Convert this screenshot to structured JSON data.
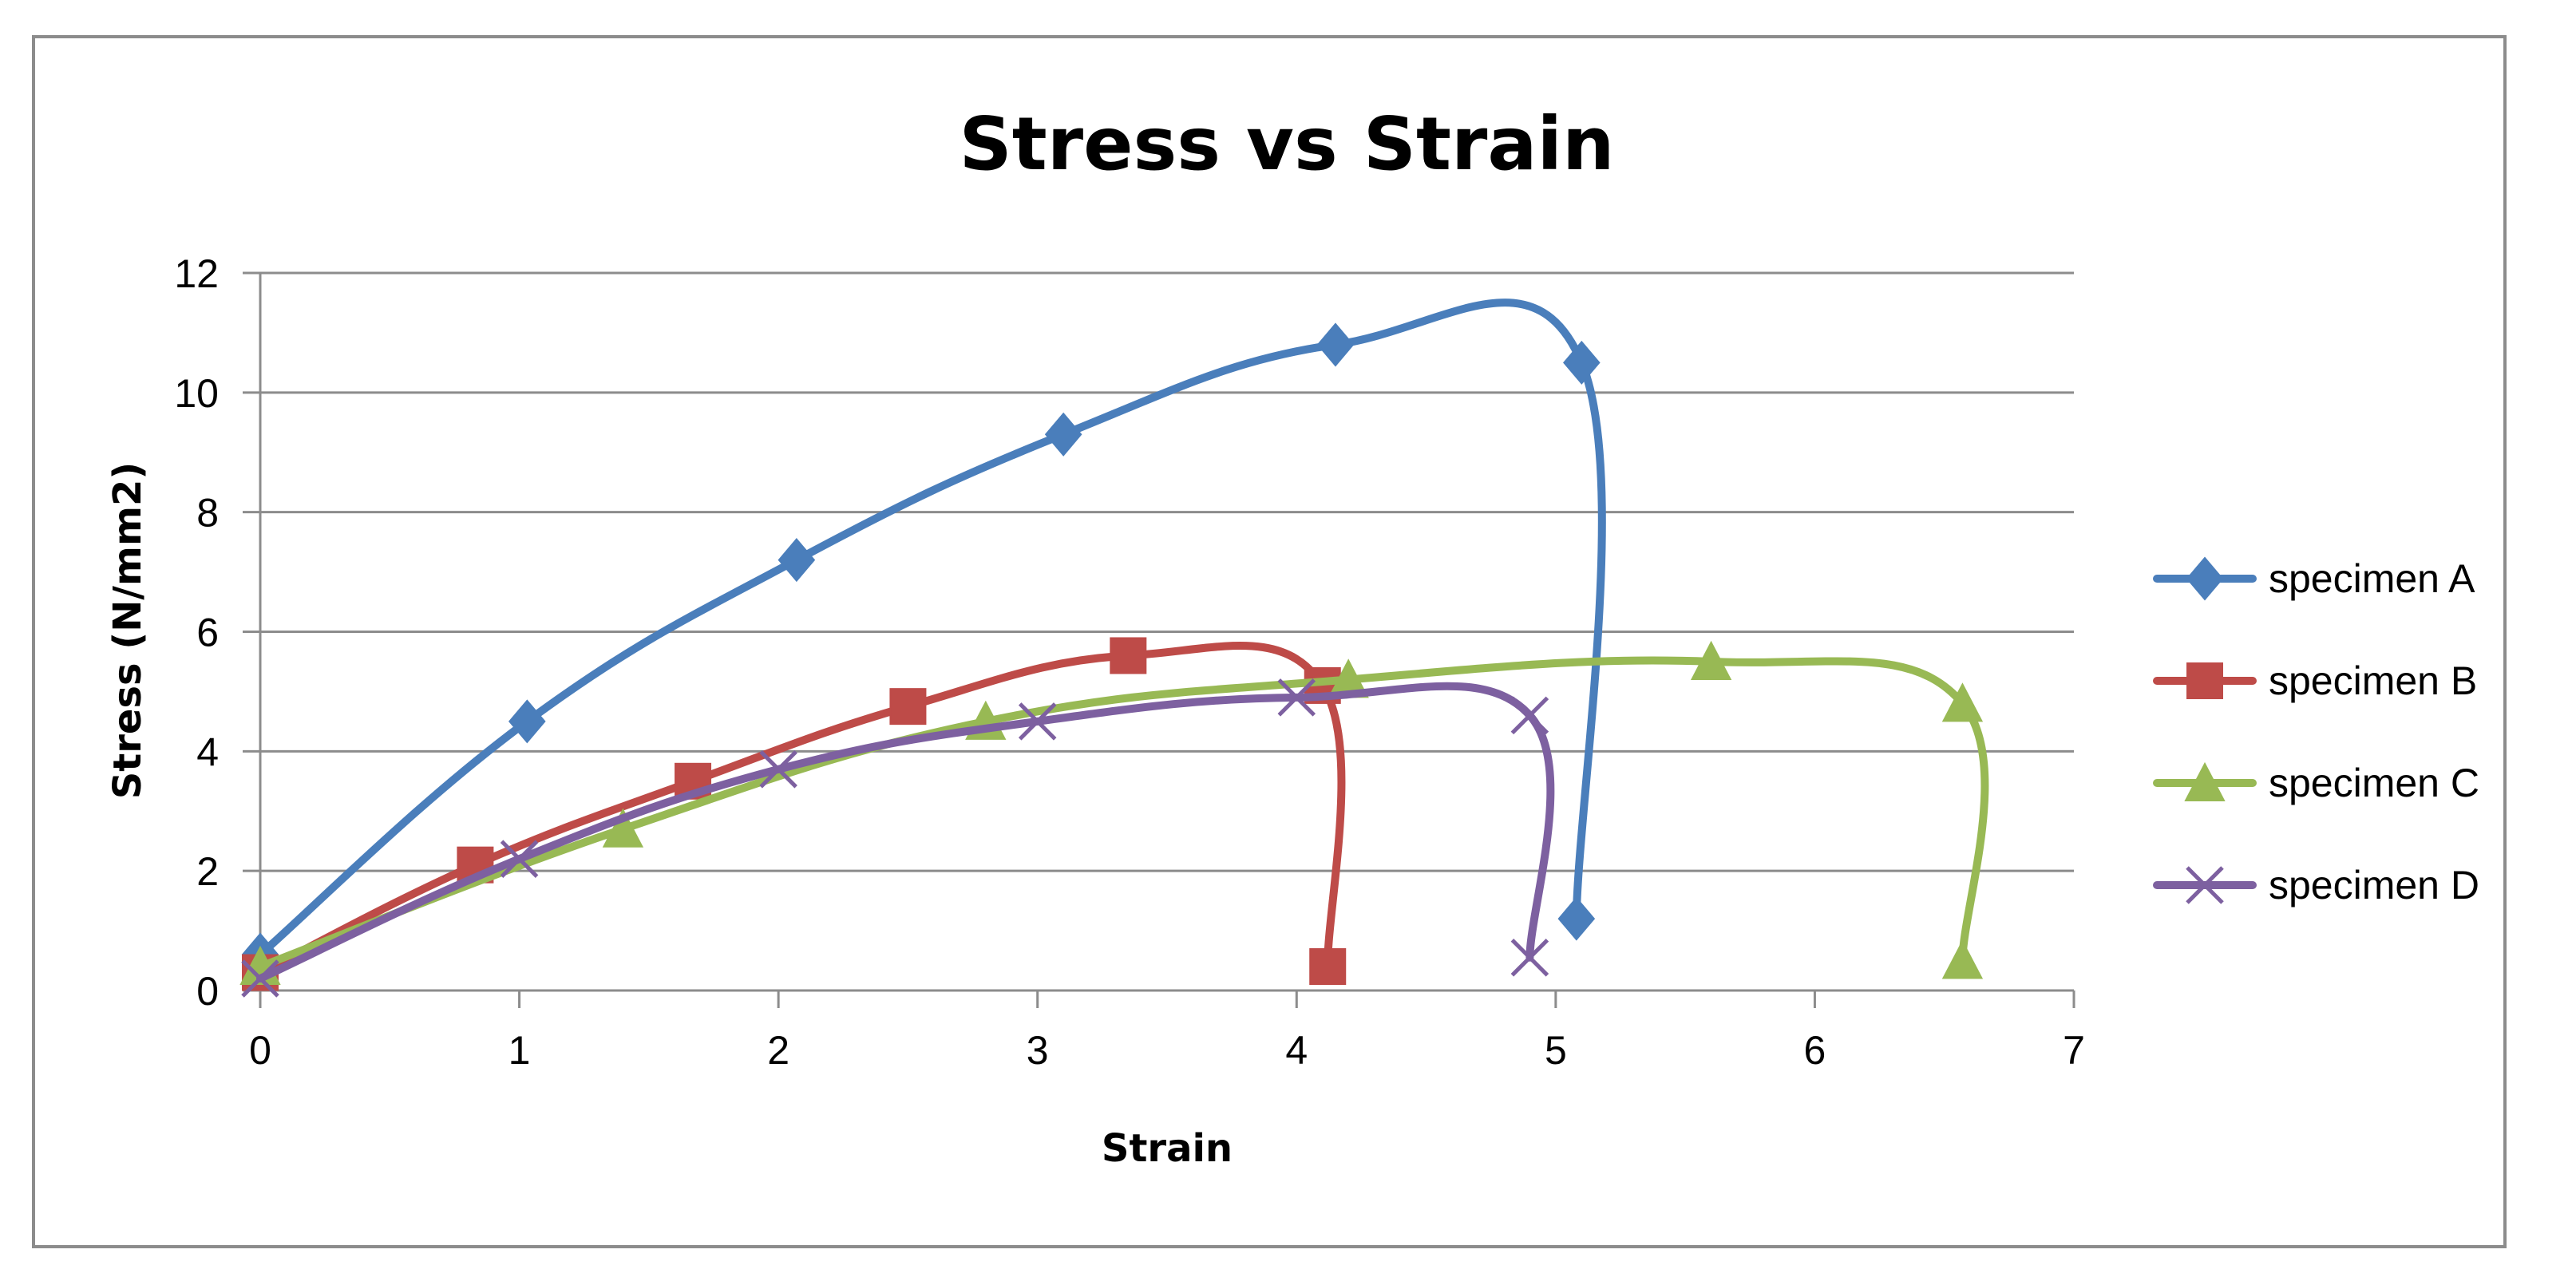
{
  "chart_data": {
    "type": "line",
    "title": "Stress vs Strain",
    "xlabel": "Strain",
    "ylabel": "Stress (N/mm2)",
    "xlim": [
      0,
      7
    ],
    "ylim": [
      0,
      12
    ],
    "xticks": [
      0,
      1,
      2,
      3,
      4,
      5,
      6,
      7
    ],
    "yticks": [
      0,
      2,
      4,
      6,
      8,
      10,
      12
    ],
    "grid": "horizontal",
    "legend": "right",
    "series": [
      {
        "name": "specimen A",
        "color": "#4a7ebb",
        "marker": "diamond",
        "points": [
          [
            0,
            0.6
          ],
          [
            1.03,
            4.5
          ],
          [
            2.07,
            7.2
          ],
          [
            3.1,
            9.3
          ],
          [
            4.15,
            10.8
          ],
          [
            5.1,
            10.5
          ],
          [
            5.08,
            1.2
          ]
        ]
      },
      {
        "name": "specimen B",
        "color": "#be4b48",
        "marker": "square",
        "points": [
          [
            0,
            0.3
          ],
          [
            0.83,
            2.1
          ],
          [
            1.67,
            3.5
          ],
          [
            2.5,
            4.75
          ],
          [
            3.35,
            5.6
          ],
          [
            4.1,
            5.1
          ],
          [
            4.12,
            0.4
          ]
        ]
      },
      {
        "name": "specimen C",
        "color": "#98b954",
        "marker": "triangle",
        "points": [
          [
            0,
            0.4
          ],
          [
            1.4,
            2.7
          ],
          [
            2.8,
            4.5
          ],
          [
            4.2,
            5.2
          ],
          [
            5.6,
            5.5
          ],
          [
            6.57,
            4.8
          ],
          [
            6.57,
            0.5
          ]
        ]
      },
      {
        "name": "specimen D",
        "color": "#7d60a0",
        "marker": "x",
        "points": [
          [
            0,
            0.2
          ],
          [
            1.0,
            2.2
          ],
          [
            2.0,
            3.7
          ],
          [
            3.0,
            4.5
          ],
          [
            4.0,
            4.9
          ],
          [
            4.9,
            4.6
          ],
          [
            4.9,
            0.55
          ]
        ]
      }
    ]
  }
}
